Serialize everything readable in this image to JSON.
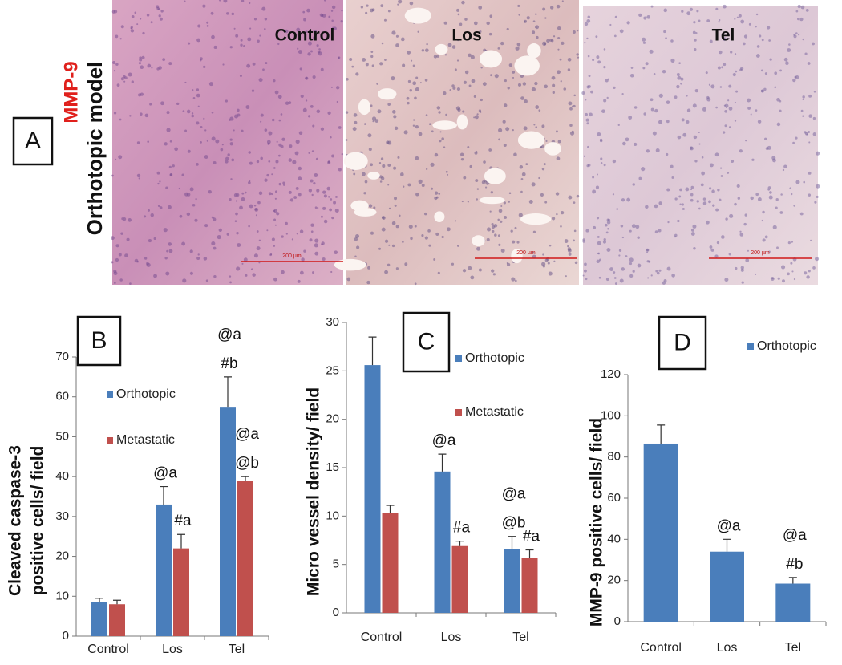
{
  "panel_a": {
    "panel": "A",
    "stain": "MMP-9",
    "model": "Orthotopic model",
    "images": [
      {
        "label": "Control",
        "scale_bar": "200 µm"
      },
      {
        "label": "Los",
        "scale_bar": "200 µm"
      },
      {
        "label": "Tel",
        "scale_bar": "200 µm"
      }
    ]
  },
  "chart_data": [
    {
      "type": "bar",
      "panel": "B",
      "y_label": [
        "Cleaved caspase-3",
        "positive cells/ field"
      ],
      "categories": [
        "Control",
        "Los",
        "Tel"
      ],
      "ylim": [
        0,
        70
      ],
      "yticks": [
        0,
        10,
        20,
        30,
        40,
        50,
        60,
        70
      ],
      "series": [
        {
          "name": "Orthotopic",
          "color": "#4a7ebb",
          "values": [
            8.5,
            33,
            57.5
          ],
          "errors": [
            1,
            4.5,
            7.5
          ],
          "annotations": [
            null,
            [
              "@a"
            ],
            [
              "@a",
              "#b"
            ]
          ]
        },
        {
          "name": "Metastatic",
          "color": "#c0504d",
          "values": [
            8,
            22,
            39
          ],
          "errors": [
            1,
            3.5,
            1
          ],
          "annotations": [
            null,
            [
              "#a"
            ],
            [
              "@a",
              "@b"
            ]
          ]
        }
      ]
    },
    {
      "type": "bar",
      "panel": "C",
      "y_label": "Micro vessel density/ field",
      "categories": [
        "Control",
        "Los",
        "Tel"
      ],
      "ylim": [
        0,
        30
      ],
      "yticks": [
        0,
        5,
        10,
        15,
        20,
        25,
        30
      ],
      "series": [
        {
          "name": "Orthotopic",
          "color": "#4a7ebb",
          "values": [
            25.6,
            14.6,
            6.6
          ],
          "errors": [
            2.9,
            1.8,
            1.3
          ],
          "annotations": [
            null,
            [
              "@a"
            ],
            [
              "@a",
              "@b"
            ]
          ]
        },
        {
          "name": "Metastatic",
          "color": "#c0504d",
          "values": [
            10.3,
            6.9,
            5.7
          ],
          "errors": [
            0.8,
            0.5,
            0.8
          ],
          "annotations": [
            null,
            [
              "#a"
            ],
            [
              "#a"
            ]
          ]
        }
      ]
    },
    {
      "type": "bar",
      "panel": "D",
      "y_label": "MMP-9 positive cells/ field",
      "categories": [
        "Control",
        "Los",
        "Tel"
      ],
      "ylim": [
        0,
        120
      ],
      "yticks": [
        0,
        20,
        40,
        60,
        80,
        100,
        120
      ],
      "series": [
        {
          "name": "Orthotopic",
          "color": "#4a7ebb",
          "values": [
            86.5,
            34,
            18.5
          ],
          "errors": [
            9,
            6,
            3
          ],
          "annotations": [
            null,
            [
              "@a"
            ],
            [
              "@a",
              "#b"
            ]
          ]
        }
      ]
    }
  ]
}
